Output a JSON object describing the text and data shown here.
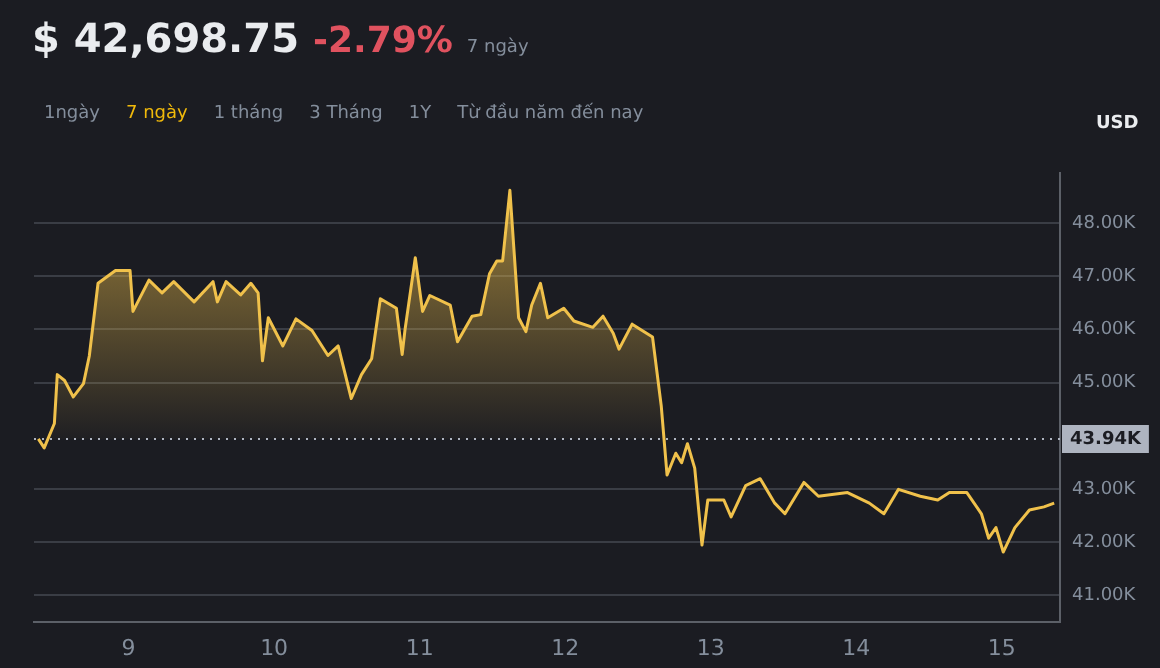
{
  "chart_data": {
    "type": "area",
    "title": "$ 42,698.75",
    "subtitle": "-2.79%",
    "ylabel": "USD",
    "annotations": [
      "7 ngày",
      "1ngày",
      "7 ngày",
      "1 tháng",
      "3 Tháng",
      "1Y",
      "Từ đầu năm đến nay"
    ],
    "series": [
      {
        "color": "#f0c14b",
        "x": [
          8.38,
          8.42,
          8.49,
          8.51,
          8.56,
          8.62,
          8.69,
          8.73,
          8.79,
          8.91,
          9.01,
          9.03,
          9.14,
          9.23,
          9.31,
          9.45,
          9.58,
          9.61,
          9.67,
          9.77,
          9.84,
          9.89,
          9.92,
          9.96,
          10.06,
          10.15,
          10.26,
          10.37,
          10.44,
          10.53,
          10.6,
          10.67,
          10.73,
          10.84,
          10.88,
          10.9,
          10.97,
          11.02,
          11.07,
          11.21,
          11.26,
          11.36,
          11.42,
          11.48,
          11.53,
          11.57,
          11.62,
          11.68,
          11.73,
          11.77,
          11.83,
          11.88,
          11.99,
          12.06,
          12.19,
          12.26,
          12.33,
          12.37,
          12.46,
          12.6,
          12.66,
          12.7,
          12.76,
          12.8,
          12.84,
          12.89,
          12.94,
          12.98,
          13.09,
          13.14,
          13.24,
          13.34,
          13.44,
          13.51,
          13.64,
          13.74,
          13.94,
          14.09,
          14.19,
          14.29,
          14.44,
          14.56,
          14.64,
          14.76,
          14.86,
          14.91,
          14.96,
          15.01,
          15.09,
          15.19,
          15.29,
          15.36
        ],
        "values": [
          43.94,
          43.77,
          44.23,
          45.15,
          45.04,
          44.73,
          44.98,
          45.5,
          46.87,
          47.11,
          47.11,
          46.34,
          46.93,
          46.69,
          46.9,
          46.52,
          46.9,
          46.52,
          46.9,
          46.65,
          46.87,
          46.69,
          45.41,
          46.22,
          45.69,
          46.2,
          45.98,
          45.51,
          45.69,
          44.7,
          45.15,
          45.45,
          46.58,
          46.4,
          45.53,
          46.01,
          47.35,
          46.34,
          46.64,
          46.46,
          45.77,
          46.25,
          46.28,
          47.05,
          47.29,
          47.29,
          48.62,
          46.22,
          45.96,
          46.46,
          46.87,
          46.22,
          46.4,
          46.16,
          46.04,
          46.25,
          45.93,
          45.63,
          46.1,
          45.86,
          44.56,
          43.26,
          43.67,
          43.49,
          43.85,
          43.39,
          41.94,
          42.79,
          42.79,
          42.47,
          43.06,
          43.19,
          42.73,
          42.53,
          43.12,
          42.86,
          42.93,
          42.73,
          42.53,
          42.99,
          42.86,
          42.79,
          42.93,
          42.93,
          42.53,
          42.07,
          42.27,
          41.81,
          42.27,
          42.6,
          42.66,
          42.73
        ]
      }
    ],
    "xlim": [
      8.35,
      15.4
    ],
    "xticks": [
      9,
      10,
      11,
      12,
      13,
      14,
      15
    ],
    "ylim": [
      40.5,
      48.95
    ],
    "yticks": [
      {
        "value": 41,
        "label": "41.00K"
      },
      {
        "value": 42,
        "label": "42.00K"
      },
      {
        "value": 43,
        "label": "43.00K"
      },
      {
        "value": 45,
        "label": "45.00K"
      },
      {
        "value": 46,
        "label": "46.00K"
      },
      {
        "value": 47,
        "label": "47.00K"
      },
      {
        "value": 48,
        "label": "48.00K"
      }
    ],
    "ref_lines": [
      {
        "axis": "y",
        "value": 43.94,
        "label": "43.94K",
        "color": "#aeb4c0",
        "line_style": "dotted"
      }
    ],
    "grid": "y",
    "legend": false,
    "marker": "none",
    "line_style": "solid"
  }
}
